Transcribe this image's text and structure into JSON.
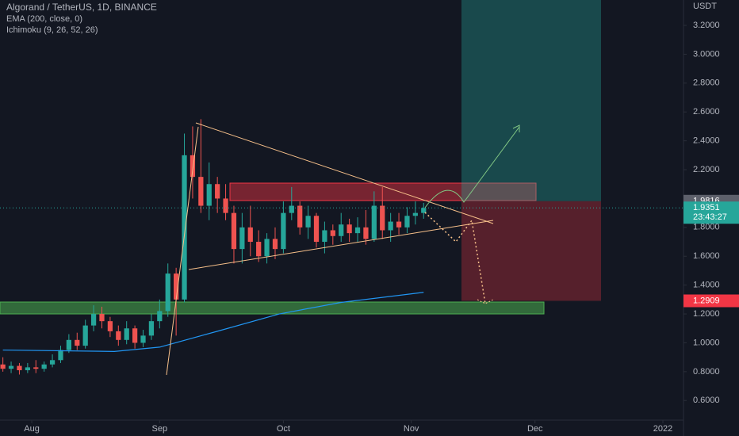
{
  "chart_data": {
    "type": "candlestick",
    "title": "Algorand / TetherUS, 1D, BINANCE",
    "ichimoku_label": "Ichimoku (9, 26, 52, 26)",
    "y_unit": "USDT",
    "up_color": "#26a69a",
    "down_color": "#ef5350",
    "grid": false,
    "x": [
      -7,
      -5,
      -3,
      -1,
      1,
      3,
      5,
      7,
      9,
      11,
      13,
      15,
      17,
      19,
      21,
      23,
      25,
      27,
      29,
      31,
      33,
      35,
      37,
      39,
      41,
      43,
      45,
      47,
      49,
      51,
      53,
      55,
      57,
      59,
      61,
      63,
      65,
      67,
      69,
      71,
      73,
      75,
      77,
      79,
      81,
      83,
      85,
      87,
      89,
      91,
      93,
      95
    ],
    "open": [
      0.85,
      0.82,
      0.84,
      0.81,
      0.83,
      0.82,
      0.85,
      0.88,
      0.95,
      1.02,
      0.98,
      1.12,
      1.2,
      1.15,
      1.08,
      1.02,
      1.1,
      1.0,
      1.05,
      1.15,
      1.22,
      1.48,
      1.3,
      2.3,
      2.15,
      1.95,
      2.1,
      2.0,
      1.9,
      1.65,
      1.8,
      1.7,
      1.6,
      1.72,
      1.65,
      1.9,
      1.95,
      1.8,
      1.88,
      1.7,
      1.78,
      1.74,
      1.82,
      1.76,
      1.8,
      1.72,
      1.95,
      1.78,
      1.84,
      1.8,
      1.88,
      1.9
    ],
    "high": [
      0.9,
      0.87,
      0.86,
      0.86,
      0.88,
      0.87,
      0.92,
      0.98,
      1.06,
      1.07,
      1.16,
      1.26,
      1.25,
      1.18,
      1.12,
      1.15,
      1.12,
      1.09,
      1.2,
      1.3,
      1.55,
      1.52,
      2.45,
      2.5,
      2.55,
      2.25,
      2.15,
      2.1,
      1.95,
      1.9,
      1.95,
      1.78,
      1.76,
      1.8,
      1.98,
      2.08,
      1.98,
      1.95,
      1.9,
      1.84,
      1.82,
      1.9,
      1.86,
      1.87,
      1.92,
      2.05,
      2.08,
      1.9,
      1.9,
      1.94,
      1.98,
      1.97
    ],
    "low": [
      0.8,
      0.79,
      0.78,
      0.79,
      0.79,
      0.8,
      0.83,
      0.86,
      0.93,
      0.95,
      0.96,
      1.08,
      1.1,
      1.04,
      0.98,
      0.99,
      0.96,
      0.97,
      1.02,
      1.1,
      1.18,
      1.05,
      1.28,
      2.0,
      1.9,
      1.85,
      1.9,
      1.85,
      1.55,
      1.55,
      1.6,
      1.56,
      1.55,
      1.58,
      1.62,
      1.85,
      1.75,
      1.72,
      1.66,
      1.62,
      1.68,
      1.7,
      1.7,
      1.7,
      1.68,
      1.7,
      1.72,
      1.7,
      1.75,
      1.76,
      1.82,
      1.86
    ],
    "close": [
      0.82,
      0.84,
      0.81,
      0.83,
      0.82,
      0.85,
      0.88,
      0.95,
      1.02,
      0.98,
      1.12,
      1.2,
      1.15,
      1.08,
      1.02,
      1.1,
      1.0,
      1.05,
      1.15,
      1.22,
      1.48,
      1.3,
      2.3,
      2.15,
      1.95,
      2.1,
      2.0,
      1.9,
      1.65,
      1.8,
      1.7,
      1.6,
      1.72,
      1.65,
      1.9,
      1.95,
      1.8,
      1.88,
      1.7,
      1.78,
      1.74,
      1.82,
      1.76,
      1.8,
      1.72,
      1.95,
      1.78,
      1.84,
      1.8,
      1.88,
      1.9,
      1.935
    ],
    "series": [
      {
        "name": "EMA (200, close, 0)",
        "color": "#2196f3",
        "x": [
          -7,
          20,
          31,
          45,
          60,
          75,
          95
        ],
        "values": [
          0.95,
          0.94,
          0.97,
          1.08,
          1.2,
          1.28,
          1.35
        ]
      }
    ],
    "xlim": [
      -7.7,
      158
    ],
    "xticks": [
      {
        "value": 0,
        "label": "Aug"
      },
      {
        "value": 31,
        "label": "Sep"
      },
      {
        "value": 61,
        "label": "Oct"
      },
      {
        "value": 92,
        "label": "Nov"
      },
      {
        "value": 122,
        "label": "Dec"
      },
      {
        "value": 153,
        "label": "2022"
      }
    ],
    "ylim": [
      0.464,
      3.376
    ],
    "yticks": [
      {
        "value": 0.6,
        "label": "0.6000"
      },
      {
        "value": 0.8,
        "label": "0.8000"
      },
      {
        "value": 1.0,
        "label": "1.0000"
      },
      {
        "value": 1.2,
        "label": "1.2000"
      },
      {
        "value": 1.4,
        "label": "1.4000"
      },
      {
        "value": 1.6,
        "label": "1.6000"
      },
      {
        "value": 1.8,
        "label": "1.8000"
      },
      {
        "value": 2.0,
        "label": "2.0000"
      },
      {
        "value": 2.2,
        "label": "2.2000"
      },
      {
        "value": 2.4,
        "label": "2.4000"
      },
      {
        "value": 2.6,
        "label": "2.6000"
      },
      {
        "value": 2.8,
        "label": "2.8000"
      },
      {
        "value": 3.0,
        "label": "3.0000"
      },
      {
        "value": 3.2,
        "label": "3.2000"
      }
    ],
    "entry_price": {
      "value": 1.9816,
      "label": "1.9816"
    },
    "last_price": {
      "value": 1.9351,
      "label": "1.9351"
    },
    "countdown": "23:43:27",
    "stop_price": {
      "value": 1.2909,
      "label": "1.2909"
    }
  }
}
